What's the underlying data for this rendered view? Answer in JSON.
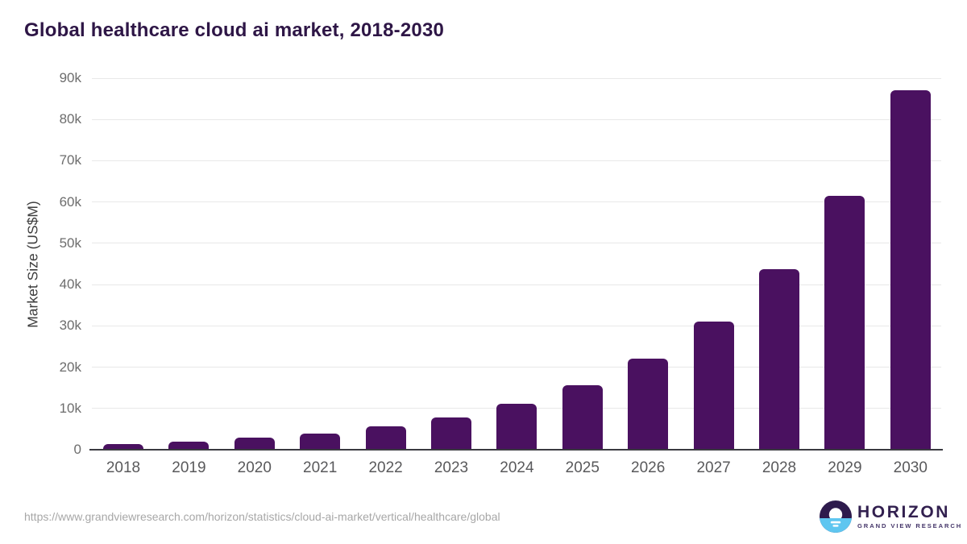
{
  "title": "Global healthcare cloud ai market, 2018-2030",
  "chart_data": {
    "type": "bar",
    "title": "Global healthcare cloud ai market, 2018-2030",
    "categories": [
      "2018",
      "2019",
      "2020",
      "2021",
      "2022",
      "2023",
      "2024",
      "2025",
      "2026",
      "2027",
      "2028",
      "2029",
      "2030"
    ],
    "values": [
      1350,
      1950,
      2950,
      3950,
      5600,
      7800,
      11100,
      15700,
      22000,
      31000,
      43700,
      61500,
      87000
    ],
    "xlabel": "",
    "ylabel": "Market Size (US$M)",
    "ylim": [
      0,
      90000
    ],
    "ytick_interval": 10000,
    "ytick_labels": [
      "0",
      "10k",
      "20k",
      "30k",
      "40k",
      "50k",
      "60k",
      "70k",
      "80k",
      "90k"
    ],
    "grid": "horizontal-only",
    "legend": "none",
    "bar_color": "#4a1160"
  },
  "footer": {
    "source_url": "https://www.grandviewresearch.com/horizon/statistics/cloud-ai-market/vertical/healthcare/global",
    "logo": {
      "name": "HORIZON",
      "subtitle": "GRAND VIEW RESEARCH"
    }
  },
  "colors": {
    "bar": "#4a1160",
    "title_text": "#2e1646",
    "gridline": "#e8e8e8",
    "axis_line": "#3a3a40",
    "ytick_text": "#6d6d6d",
    "xtick_text": "#59595b",
    "source_text": "#a7a7a7",
    "logo_purple": "#32204f",
    "logo_blue": "#5fc6f0"
  }
}
